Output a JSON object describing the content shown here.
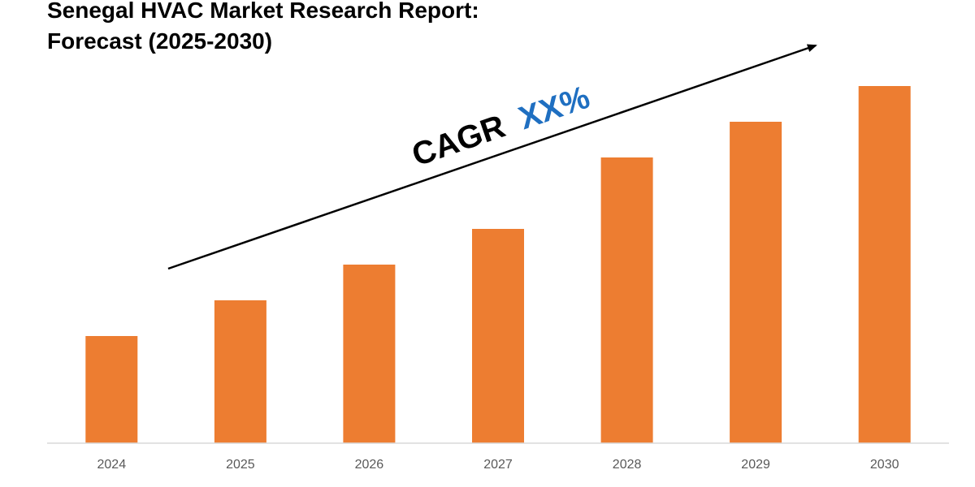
{
  "title": {
    "line1": "Senegal HVAC Market Research Report:",
    "line2": "Forecast (2025-2030)"
  },
  "annotation": {
    "prefix": "CAGR",
    "value": "XX%",
    "prefix_color": "#000000",
    "value_color": "#1F6FC1"
  },
  "colors": {
    "bar": "#ED7D31",
    "axis": "#D9D9D9",
    "arrow": "#000000"
  },
  "chart_data": {
    "type": "bar",
    "title": "Senegal HVAC Market Research Report: Forecast (2025-2030)",
    "categories": [
      "2024",
      "2025",
      "2026",
      "2027",
      "2028",
      "2029",
      "2030"
    ],
    "values": [
      30,
      40,
      50,
      60,
      80,
      90,
      100
    ],
    "ylim": [
      0,
      110
    ],
    "grid": false,
    "legend": "none",
    "xlabel": "",
    "ylabel": ""
  }
}
